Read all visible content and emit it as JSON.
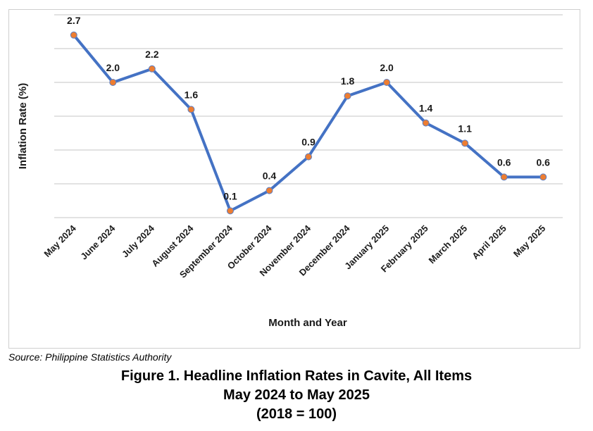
{
  "chart_data": {
    "type": "line",
    "categories": [
      "May 2024",
      "June 2024",
      "July 2024",
      "August 2024",
      "September 2024",
      "October 2024",
      "November 2024",
      "December 2024",
      "January 2025",
      "February 2025",
      "March 2025",
      "April 2025",
      "May 2025"
    ],
    "values": [
      2.7,
      2.0,
      2.2,
      1.6,
      0.1,
      0.4,
      0.9,
      1.8,
      2.0,
      1.4,
      1.1,
      0.6,
      0.6
    ],
    "data_labels": [
      "2.7",
      "2.0",
      "2.2",
      "1.6",
      "0.1",
      "0.4",
      "0.9",
      "1.8",
      "2.0",
      "1.4",
      "1.1",
      "0.6",
      "0.6"
    ],
    "xlabel": "Month and Year",
    "ylabel": "Inflation Rate (%)",
    "ylim": [
      0,
      3.0
    ],
    "grid": true,
    "line_color": "#4472c4",
    "marker_color": "#ed7d31"
  },
  "source": "Source: Philippine Statistics Authority",
  "caption": {
    "line1": "Figure 1. Headline Inflation Rates in Cavite, All Items",
    "line2": "May 2024 to May 2025",
    "line3": "(2018 = 100)"
  }
}
